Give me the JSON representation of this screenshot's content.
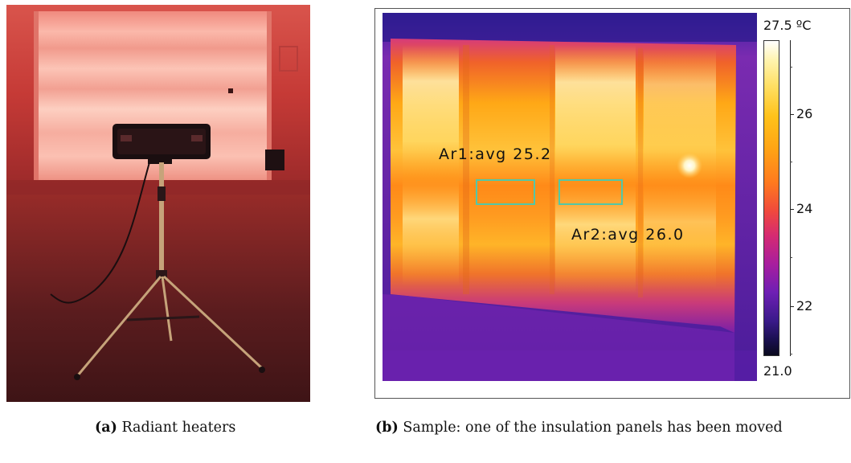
{
  "panel_a": {
    "caption_tag": "(a)",
    "caption_text": "Radiant heaters"
  },
  "panel_b": {
    "areas": [
      {
        "label": "Ar1:avg 25.2"
      },
      {
        "label": "Ar2:avg 26.0"
      }
    ],
    "color_scale": {
      "max_label": "27.5 ºC",
      "min_label": "21.0",
      "ticks": [
        "26",
        "24",
        "22"
      ]
    },
    "caption_tag": "(b)",
    "caption_text": "Sample: one of the insulation panels has been moved"
  },
  "colors": {
    "roi_outline": "#52c7a8",
    "room_glow": "#e8655a",
    "thermal_hot": "#ffe066",
    "thermal_cold": "#3a1a8a"
  }
}
